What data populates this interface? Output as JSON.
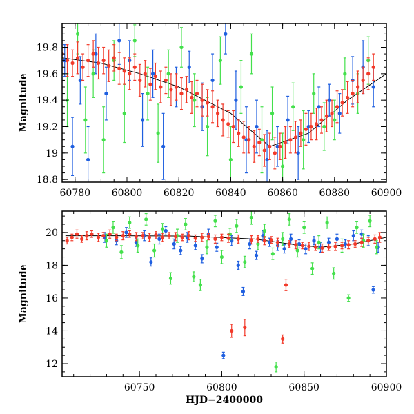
{
  "colors": {
    "blue": "#1f5fe0",
    "green": "#44e04c",
    "red": "#f23a2a",
    "axis": "#000000"
  },
  "chart_data": [
    {
      "panel": "top",
      "type": "scatter",
      "title": "",
      "xlabel": "",
      "ylabel": "Magnitude",
      "xlim": [
        60775,
        60900
      ],
      "ylim": [
        19.98,
        18.78
      ],
      "y_inverted": true,
      "grid": false,
      "legend": "none",
      "xticks": [
        60780,
        60800,
        60820,
        60840,
        60860,
        60880,
        60900
      ],
      "xtick_labels": [
        "60780",
        "60800",
        "60820",
        "60840",
        "60860",
        "60880",
        "60900"
      ],
      "yticks": [
        18.8,
        19.0,
        19.2,
        19.4,
        19.6,
        19.8
      ],
      "ytick_labels": [
        "18.8",
        "19",
        "19.2",
        "19.4",
        "19.6",
        "19.8"
      ],
      "trend": {
        "x": [
          60775,
          60790,
          60805,
          60820,
          60840,
          60855,
          60870,
          60885,
          60900
        ],
        "y": [
          19.72,
          19.68,
          19.6,
          19.5,
          19.3,
          19.05,
          19.15,
          19.4,
          19.6
        ]
      },
      "series": [
        {
          "color": "blue",
          "x": [
            60776,
            60779,
            60782,
            60785,
            60788,
            60792,
            60797,
            60801,
            60806,
            60810,
            60814,
            60819,
            60824,
            60829,
            60833,
            60838,
            60842,
            60846,
            60850,
            60854,
            60858,
            60862,
            60866,
            60870,
            60874,
            60878,
            60882,
            60887,
            60891,
            60895
          ],
          "y": [
            19.7,
            19.05,
            19.55,
            18.95,
            19.75,
            19.45,
            19.85,
            19.7,
            19.25,
            19.6,
            19.05,
            19.5,
            19.65,
            19.35,
            19.55,
            19.9,
            19.4,
            19.1,
            19.2,
            18.95,
            19.05,
            19.25,
            19.0,
            19.2,
            19.35,
            19.4,
            19.3,
            19.55,
            19.65,
            19.5
          ],
          "err": [
            0.12,
            0.22,
            0.18,
            0.25,
            0.15,
            0.2,
            0.18,
            0.15,
            0.2,
            0.18,
            0.25,
            0.15,
            0.12,
            0.18,
            0.2,
            0.15,
            0.22,
            0.25,
            0.2,
            0.22,
            0.15,
            0.18,
            0.2,
            0.12,
            0.15,
            0.12,
            0.15,
            0.18,
            0.2,
            0.15
          ]
        },
        {
          "color": "green",
          "x": [
            60777,
            60781,
            60784,
            60787,
            60791,
            60795,
            60799,
            60803,
            60808,
            60812,
            60816,
            60821,
            60826,
            60831,
            60836,
            60840,
            60844,
            60848,
            60852,
            60856,
            60860,
            60864,
            60868,
            60872,
            60876,
            60880,
            60884,
            60889,
            60893
          ],
          "y": [
            19.4,
            19.9,
            19.25,
            19.6,
            19.1,
            19.7,
            19.3,
            19.85,
            19.45,
            19.15,
            19.6,
            19.8,
            19.4,
            19.2,
            19.7,
            18.95,
            19.5,
            19.75,
            19.1,
            19.3,
            18.9,
            19.35,
            19.1,
            19.45,
            19.2,
            19.25,
            19.6,
            19.45,
            19.7
          ],
          "err": [
            0.2,
            0.15,
            0.25,
            0.18,
            0.25,
            0.15,
            0.22,
            0.12,
            0.2,
            0.22,
            0.18,
            0.15,
            0.2,
            0.22,
            0.18,
            0.25,
            0.2,
            0.15,
            0.25,
            0.2,
            0.25,
            0.18,
            0.22,
            0.15,
            0.18,
            0.15,
            0.12,
            0.15,
            0.18
          ]
        },
        {
          "color": "red",
          "x": [
            60775,
            60777,
            60779,
            60781,
            60783,
            60785,
            60787,
            60789,
            60791,
            60793,
            60795,
            60797,
            60799,
            60801,
            60803,
            60805,
            60807,
            60809,
            60811,
            60813,
            60815,
            60817,
            60819,
            60821,
            60823,
            60825,
            60827,
            60829,
            60831,
            60833,
            60835,
            60837,
            60839,
            60841,
            60843,
            60845,
            60847,
            60849,
            60851,
            60853,
            60855,
            60857,
            60859,
            60861,
            60863,
            60865,
            60867,
            60869,
            60871,
            60873,
            60875,
            60877,
            60879,
            60881,
            60883,
            60885,
            60887,
            60889,
            60891,
            60893,
            60895
          ],
          "y": [
            19.75,
            19.7,
            19.68,
            19.72,
            19.65,
            19.7,
            19.75,
            19.68,
            19.7,
            19.66,
            19.72,
            19.64,
            19.62,
            19.6,
            19.65,
            19.55,
            19.6,
            19.52,
            19.58,
            19.5,
            19.55,
            19.48,
            19.5,
            19.45,
            19.48,
            19.42,
            19.45,
            19.4,
            19.38,
            19.35,
            19.3,
            19.25,
            19.22,
            19.2,
            19.15,
            19.12,
            19.1,
            19.05,
            19.08,
            19.02,
            19.05,
            19.0,
            19.05,
            19.08,
            19.1,
            19.12,
            19.15,
            19.18,
            19.2,
            19.22,
            19.25,
            19.28,
            19.3,
            19.35,
            19.38,
            19.42,
            19.45,
            19.5,
            19.55,
            19.6,
            19.65
          ],
          "err": [
            0.1,
            0.12,
            0.1,
            0.12,
            0.1,
            0.12,
            0.1,
            0.12,
            0.1,
            0.12,
            0.1,
            0.12,
            0.1,
            0.12,
            0.1,
            0.12,
            0.1,
            0.12,
            0.1,
            0.12,
            0.1,
            0.12,
            0.1,
            0.12,
            0.1,
            0.12,
            0.1,
            0.12,
            0.1,
            0.12,
            0.1,
            0.12,
            0.1,
            0.12,
            0.1,
            0.12,
            0.1,
            0.12,
            0.1,
            0.12,
            0.1,
            0.12,
            0.1,
            0.12,
            0.1,
            0.12,
            0.1,
            0.12,
            0.1,
            0.12,
            0.1,
            0.12,
            0.1,
            0.12,
            0.1,
            0.12,
            0.1,
            0.12,
            0.1,
            0.12,
            0.1
          ]
        }
      ]
    },
    {
      "panel": "bottom",
      "type": "scatter",
      "title": "",
      "xlabel": "HJD−2400000",
      "ylabel": "Magnitude",
      "xlim": [
        60703,
        60900
      ],
      "ylim": [
        21.3,
        11.2
      ],
      "y_inverted": true,
      "grid": false,
      "legend": "none",
      "xticks": [
        60750,
        60800,
        60850,
        60900
      ],
      "xtick_labels": [
        "60750",
        "60800",
        "60850",
        "60900"
      ],
      "yticks": [
        12,
        14,
        16,
        18,
        20
      ],
      "ytick_labels": [
        "12",
        "14",
        "16",
        "18",
        "20"
      ],
      "trend": {
        "x": [
          60705,
          60740,
          60780,
          60820,
          60845,
          60860,
          60880,
          60900
        ],
        "y": [
          19.8,
          19.8,
          19.78,
          19.6,
          19.25,
          19.1,
          19.3,
          19.7
        ]
      },
      "series": [
        {
          "color": "blue",
          "x": [
            60729,
            60736,
            60742,
            60748,
            60753,
            60757,
            60762,
            60766,
            60771,
            60775,
            60779,
            60784,
            60788,
            60792,
            60797,
            60801,
            60806,
            60810,
            60813,
            60817,
            60821,
            60825,
            60829,
            60834,
            60838,
            60842,
            60847,
            60851,
            60856,
            60860,
            60865,
            60870,
            60875,
            60880,
            60885,
            60889,
            60892,
            60895
          ],
          "y": [
            19.7,
            19.5,
            20.0,
            19.4,
            19.8,
            18.2,
            19.6,
            20.1,
            19.3,
            18.9,
            19.7,
            19.2,
            18.4,
            19.9,
            19.1,
            12.5,
            19.5,
            18.0,
            16.4,
            19.3,
            18.6,
            19.8,
            19.4,
            19.2,
            19.0,
            19.6,
            19.3,
            19.0,
            19.5,
            19.1,
            19.4,
            19.6,
            19.3,
            19.8,
            19.9,
            19.5,
            16.5,
            19.1
          ],
          "err": [
            0.3,
            0.25,
            0.3,
            0.25,
            0.3,
            0.25,
            0.3,
            0.25,
            0.3,
            0.25,
            0.3,
            0.25,
            0.25,
            0.3,
            0.25,
            0.2,
            0.3,
            0.25,
            0.25,
            0.3,
            0.25,
            0.3,
            0.25,
            0.3,
            0.25,
            0.3,
            0.25,
            0.3,
            0.25,
            0.3,
            0.25,
            0.3,
            0.25,
            0.3,
            0.25,
            0.3,
            0.2,
            0.3
          ]
        },
        {
          "color": "green",
          "x": [
            60730,
            60734,
            60739,
            60744,
            60749,
            60754,
            60759,
            60764,
            60769,
            60773,
            60778,
            60783,
            60787,
            60791,
            60796,
            60800,
            60805,
            60809,
            60814,
            60818,
            60822,
            60826,
            60831,
            60833,
            60837,
            60841,
            60846,
            60850,
            60855,
            60859,
            60864,
            60868,
            60873,
            60877,
            60882,
            60886,
            60890,
            60894
          ],
          "y": [
            19.5,
            20.3,
            18.8,
            20.6,
            19.2,
            20.8,
            18.9,
            20.2,
            17.2,
            19.8,
            20.5,
            17.3,
            16.8,
            19.1,
            20.7,
            18.5,
            19.9,
            20.4,
            18.2,
            20.9,
            19.3,
            20.1,
            18.7,
            11.8,
            19.6,
            20.8,
            18.9,
            20.3,
            17.8,
            19.4,
            20.6,
            17.5,
            19.2,
            16.0,
            20.3,
            19.5,
            20.7,
            19.1
          ],
          "err": [
            0.4,
            0.35,
            0.4,
            0.35,
            0.4,
            0.35,
            0.4,
            0.35,
            0.35,
            0.4,
            0.35,
            0.3,
            0.35,
            0.4,
            0.35,
            0.4,
            0.35,
            0.4,
            0.35,
            0.4,
            0.35,
            0.4,
            0.35,
            0.3,
            0.4,
            0.35,
            0.4,
            0.35,
            0.35,
            0.4,
            0.35,
            0.35,
            0.4,
            0.2,
            0.35,
            0.4,
            0.35,
            0.4
          ]
        },
        {
          "color": "red",
          "x": [
            60706,
            60709,
            60712,
            60715,
            60718,
            60721,
            60725,
            60728,
            60732,
            60736,
            60740,
            60744,
            60748,
            60752,
            60756,
            60760,
            60764,
            60768,
            60772,
            60776,
            60780,
            60784,
            60788,
            60792,
            60796,
            60800,
            60804,
            60806,
            60810,
            60814,
            60818,
            60822,
            60826,
            60830,
            60834,
            60837,
            60839,
            60841,
            60845,
            60849,
            60853,
            60857,
            60861,
            60865,
            60869,
            60873,
            60877,
            60881,
            60885,
            60889,
            60893,
            60896
          ],
          "y": [
            19.5,
            19.7,
            19.9,
            19.6,
            19.8,
            19.9,
            19.7,
            19.8,
            19.9,
            19.7,
            19.8,
            19.9,
            19.75,
            19.8,
            19.7,
            19.85,
            19.7,
            19.8,
            19.75,
            19.7,
            19.8,
            19.65,
            19.7,
            19.75,
            19.6,
            19.7,
            19.65,
            14.0,
            19.6,
            14.2,
            19.55,
            19.6,
            19.5,
            19.55,
            19.4,
            13.5,
            16.8,
            19.3,
            19.25,
            19.2,
            19.15,
            19.1,
            19.05,
            19.1,
            19.15,
            19.2,
            19.25,
            19.3,
            19.4,
            19.5,
            19.6,
            19.7
          ],
          "err": [
            0.2,
            0.2,
            0.25,
            0.2,
            0.25,
            0.2,
            0.25,
            0.2,
            0.25,
            0.2,
            0.25,
            0.2,
            0.25,
            0.2,
            0.25,
            0.2,
            0.25,
            0.2,
            0.25,
            0.2,
            0.25,
            0.2,
            0.25,
            0.2,
            0.25,
            0.2,
            0.25,
            0.4,
            0.25,
            0.5,
            0.25,
            0.2,
            0.25,
            0.2,
            0.25,
            0.25,
            0.35,
            0.2,
            0.25,
            0.2,
            0.25,
            0.2,
            0.25,
            0.2,
            0.25,
            0.2,
            0.25,
            0.2,
            0.25,
            0.2,
            0.25,
            0.3
          ]
        }
      ]
    }
  ]
}
